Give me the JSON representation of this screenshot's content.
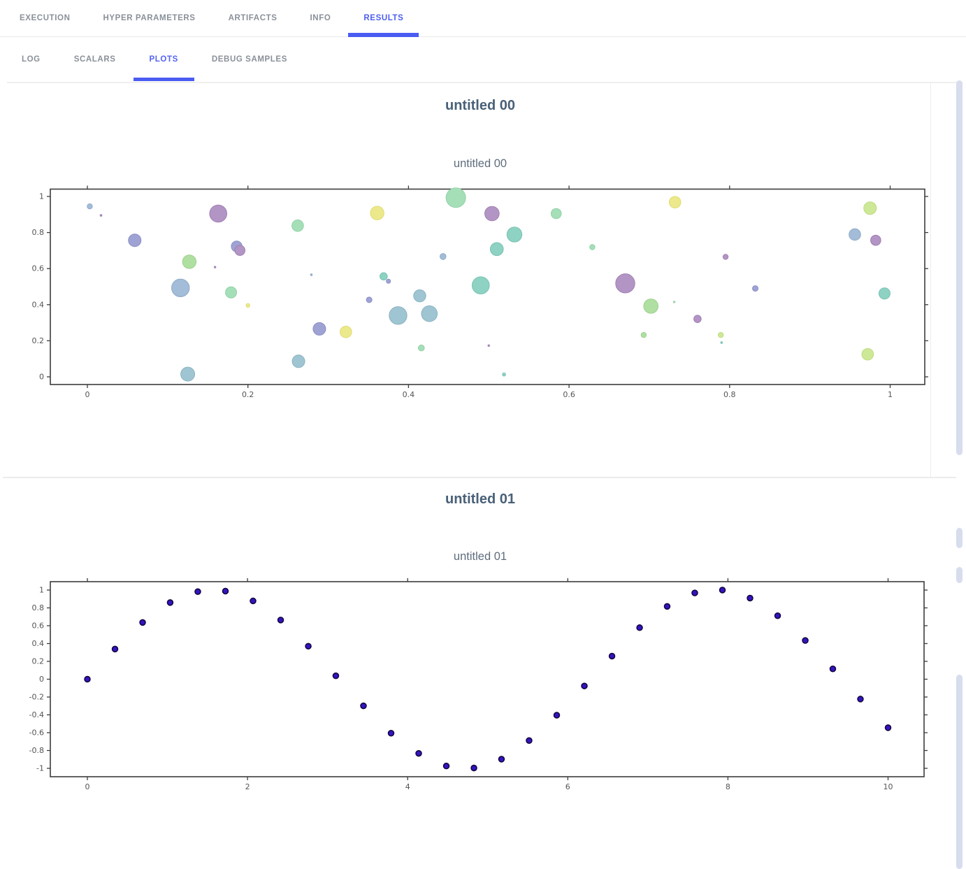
{
  "nav": {
    "tabs": [
      {
        "label": "EXECUTION",
        "active": false
      },
      {
        "label": "HYPER PARAMETERS",
        "active": false
      },
      {
        "label": "ARTIFACTS",
        "active": false
      },
      {
        "label": "INFO",
        "active": false
      },
      {
        "label": "RESULTS",
        "active": true
      }
    ]
  },
  "subnav": {
    "tabs": [
      {
        "label": "LOG",
        "active": false
      },
      {
        "label": "SCALARS",
        "active": false
      },
      {
        "label": "PLOTS",
        "active": true
      },
      {
        "label": "DEBUG SAMPLES",
        "active": false
      }
    ]
  },
  "sections": [
    {
      "header": "untitled 00"
    },
    {
      "header": "untitled 01"
    }
  ],
  "colors": {
    "accent": "#4a5cf2",
    "active_tab_text": "#4d5ef0",
    "inactive_tab_text": "#8a9099",
    "section_header": "#4a6078",
    "plot_title": "#5f6d7e",
    "axis": "#3c3c3c",
    "tick_label": "#545454",
    "scrollbar": "#d8ddee"
  },
  "chart_data": [
    {
      "type": "scatter",
      "title": "untitled 00",
      "xlabel": "",
      "ylabel": "",
      "xlim": [
        -0.046,
        1.043
      ],
      "ylim": [
        -0.043,
        1.043
      ],
      "x_ticks": [
        0,
        0.2,
        0.4,
        0.6,
        0.8,
        1
      ],
      "y_ticks": [
        0,
        0.2,
        0.4,
        0.6,
        0.8,
        1
      ],
      "grid": false,
      "legend": false,
      "palette": {
        "purple": {
          "fill": "#b295c4",
          "stroke": "#a07fb2"
        },
        "violet": {
          "fill": "#9fa3d4",
          "stroke": "#8b8fc4"
        },
        "blue": {
          "fill": "#a3bdd8",
          "stroke": "#8fa9c8"
        },
        "tealblue": {
          "fill": "#9fc5d2",
          "stroke": "#8ab3c2"
        },
        "teal": {
          "fill": "#8ed2c3",
          "stroke": "#79c2b2"
        },
        "green": {
          "fill": "#a5dfb8",
          "stroke": "#92d1a6"
        },
        "green2": {
          "fill": "#b0dfa2",
          "stroke": "#9ed190"
        },
        "lime": {
          "fill": "#cde896",
          "stroke": "#bedc82"
        },
        "yellow": {
          "fill": "#ece98c",
          "stroke": "#e0dc74"
        }
      },
      "points": [
        {
          "x": 0.003,
          "y": 0.945,
          "r": 3.7,
          "c": "blue"
        },
        {
          "x": 0.017,
          "y": 0.895,
          "r": 1.3,
          "c": "purple"
        },
        {
          "x": 0.059,
          "y": 0.757,
          "r": 9.0,
          "c": "violet"
        },
        {
          "x": 0.127,
          "y": 0.638,
          "r": 9.7,
          "c": "green2"
        },
        {
          "x": 0.116,
          "y": 0.493,
          "r": 12.7,
          "c": "blue"
        },
        {
          "x": 0.163,
          "y": 0.905,
          "r": 12.3,
          "c": "purple"
        },
        {
          "x": 0.186,
          "y": 0.723,
          "r": 7.7,
          "c": "violet"
        },
        {
          "x": 0.19,
          "y": 0.701,
          "r": 7.3,
          "c": "purple"
        },
        {
          "x": 0.159,
          "y": 0.608,
          "r": 1.2,
          "c": "purple"
        },
        {
          "x": 0.179,
          "y": 0.468,
          "r": 8.0,
          "c": "green"
        },
        {
          "x": 0.2,
          "y": 0.396,
          "r": 2.7,
          "c": "yellow"
        },
        {
          "x": 0.125,
          "y": 0.015,
          "r": 10.0,
          "c": "tealblue"
        },
        {
          "x": 0.262,
          "y": 0.838,
          "r": 8.3,
          "c": "green"
        },
        {
          "x": 0.279,
          "y": 0.566,
          "r": 1.3,
          "c": "blue"
        },
        {
          "x": 0.289,
          "y": 0.266,
          "r": 9.0,
          "c": "violet"
        },
        {
          "x": 0.263,
          "y": 0.086,
          "r": 9.0,
          "c": "tealblue"
        },
        {
          "x": 0.322,
          "y": 0.249,
          "r": 8.3,
          "c": "yellow"
        },
        {
          "x": 0.361,
          "y": 0.908,
          "r": 9.7,
          "c": "yellow"
        },
        {
          "x": 0.459,
          "y": 0.993,
          "r": 14.0,
          "c": "green"
        },
        {
          "x": 0.504,
          "y": 0.905,
          "r": 10.3,
          "c": "purple"
        },
        {
          "x": 0.532,
          "y": 0.789,
          "r": 10.7,
          "c": "teal"
        },
        {
          "x": 0.51,
          "y": 0.708,
          "r": 9.3,
          "c": "teal"
        },
        {
          "x": 0.584,
          "y": 0.905,
          "r": 7.3,
          "c": "green"
        },
        {
          "x": 0.629,
          "y": 0.719,
          "r": 3.7,
          "c": "green"
        },
        {
          "x": 0.443,
          "y": 0.667,
          "r": 4.3,
          "c": "blue"
        },
        {
          "x": 0.369,
          "y": 0.557,
          "r": 5.3,
          "c": "teal"
        },
        {
          "x": 0.375,
          "y": 0.53,
          "r": 3.0,
          "c": "violet"
        },
        {
          "x": 0.49,
          "y": 0.507,
          "r": 12.3,
          "c": "teal"
        },
        {
          "x": 0.414,
          "y": 0.449,
          "r": 8.7,
          "c": "tealblue"
        },
        {
          "x": 0.351,
          "y": 0.427,
          "r": 4.0,
          "c": "violet"
        },
        {
          "x": 0.387,
          "y": 0.34,
          "r": 12.7,
          "c": "tealblue"
        },
        {
          "x": 0.426,
          "y": 0.35,
          "r": 11.3,
          "c": "tealblue"
        },
        {
          "x": 0.416,
          "y": 0.16,
          "r": 4.3,
          "c": "green"
        },
        {
          "x": 0.5,
          "y": 0.173,
          "r": 1.2,
          "c": "purple"
        },
        {
          "x": 0.519,
          "y": 0.013,
          "r": 2.3,
          "c": "teal"
        },
        {
          "x": 0.732,
          "y": 0.968,
          "r": 8.3,
          "c": "yellow"
        },
        {
          "x": 0.67,
          "y": 0.518,
          "r": 13.7,
          "c": "purple"
        },
        {
          "x": 0.702,
          "y": 0.392,
          "r": 10.3,
          "c": "green2"
        },
        {
          "x": 0.731,
          "y": 0.415,
          "r": 1.2,
          "c": "green"
        },
        {
          "x": 0.76,
          "y": 0.321,
          "r": 5.3,
          "c": "purple"
        },
        {
          "x": 0.693,
          "y": 0.232,
          "r": 3.7,
          "c": "green2"
        },
        {
          "x": 0.789,
          "y": 0.232,
          "r": 3.7,
          "c": "lime"
        },
        {
          "x": 0.79,
          "y": 0.19,
          "r": 1.3,
          "c": "teal"
        },
        {
          "x": 0.795,
          "y": 0.665,
          "r": 3.7,
          "c": "purple"
        },
        {
          "x": 0.832,
          "y": 0.49,
          "r": 4.0,
          "c": "violet"
        },
        {
          "x": 0.956,
          "y": 0.789,
          "r": 8.3,
          "c": "blue"
        },
        {
          "x": 0.982,
          "y": 0.757,
          "r": 7.3,
          "c": "purple"
        },
        {
          "x": 0.975,
          "y": 0.935,
          "r": 9.0,
          "c": "lime"
        },
        {
          "x": 0.993,
          "y": 0.462,
          "r": 8.0,
          "c": "teal"
        },
        {
          "x": 0.972,
          "y": 0.125,
          "r": 8.3,
          "c": "lime"
        }
      ]
    },
    {
      "type": "scatter",
      "title": "untitled 01",
      "xlabel": "",
      "ylabel": "",
      "xlim": [
        -0.47,
        10.47
      ],
      "ylim": [
        -1.094,
        1.094
      ],
      "x_ticks": [
        0,
        2,
        4,
        6,
        8,
        10
      ],
      "y_ticks": [
        -1,
        -0.8,
        -0.6,
        -0.4,
        -0.2,
        0,
        0.2,
        0.4,
        0.6,
        0.8,
        1
      ],
      "grid": false,
      "legend": false,
      "marker": {
        "fill": "#3513c0",
        "stroke": "#10053c",
        "r": 4
      },
      "points": [
        {
          "x": 0.0,
          "y": 0.0
        },
        {
          "x": 0.345,
          "y": 0.338
        },
        {
          "x": 0.69,
          "y": 0.636
        },
        {
          "x": 1.034,
          "y": 0.86
        },
        {
          "x": 1.379,
          "y": 0.982
        },
        {
          "x": 1.724,
          "y": 0.988
        },
        {
          "x": 2.069,
          "y": 0.878
        },
        {
          "x": 2.414,
          "y": 0.664
        },
        {
          "x": 2.759,
          "y": 0.37
        },
        {
          "x": 3.103,
          "y": 0.038
        },
        {
          "x": 3.448,
          "y": -0.299
        },
        {
          "x": 3.793,
          "y": -0.606
        },
        {
          "x": 4.138,
          "y": -0.832
        },
        {
          "x": 4.483,
          "y": -0.974
        },
        {
          "x": 4.828,
          "y": -0.996
        },
        {
          "x": 5.172,
          "y": -0.897
        },
        {
          "x": 5.517,
          "y": -0.688
        },
        {
          "x": 5.862,
          "y": -0.404
        },
        {
          "x": 6.207,
          "y": -0.076
        },
        {
          "x": 6.552,
          "y": 0.259
        },
        {
          "x": 6.897,
          "y": 0.578
        },
        {
          "x": 7.241,
          "y": 0.817
        },
        {
          "x": 7.586,
          "y": 0.968
        },
        {
          "x": 7.931,
          "y": 1.0
        },
        {
          "x": 8.276,
          "y": 0.91
        },
        {
          "x": 8.621,
          "y": 0.712
        },
        {
          "x": 8.966,
          "y": 0.434
        },
        {
          "x": 9.31,
          "y": 0.116
        },
        {
          "x": 9.655,
          "y": -0.223
        },
        {
          "x": 10.0,
          "y": -0.544
        }
      ]
    }
  ]
}
